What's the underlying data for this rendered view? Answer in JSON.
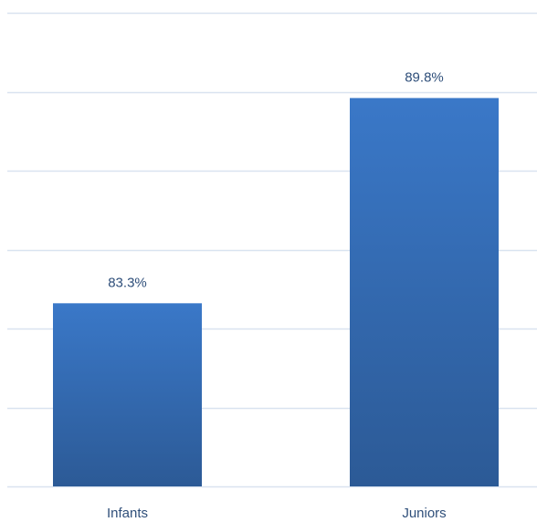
{
  "chart_data": {
    "type": "bar",
    "categories": [
      "Infants",
      "Juniors"
    ],
    "values": [
      83.3,
      89.8
    ],
    "labels": [
      "83.3%",
      "89.8%"
    ],
    "ylim": [
      77.5,
      92.5
    ],
    "gridlines": true,
    "bar_color": "#3a78c8",
    "bar_color_bottom": "#2c5a96",
    "text_color": "#2f4f7a",
    "grid_color": "#d9e3f0"
  }
}
